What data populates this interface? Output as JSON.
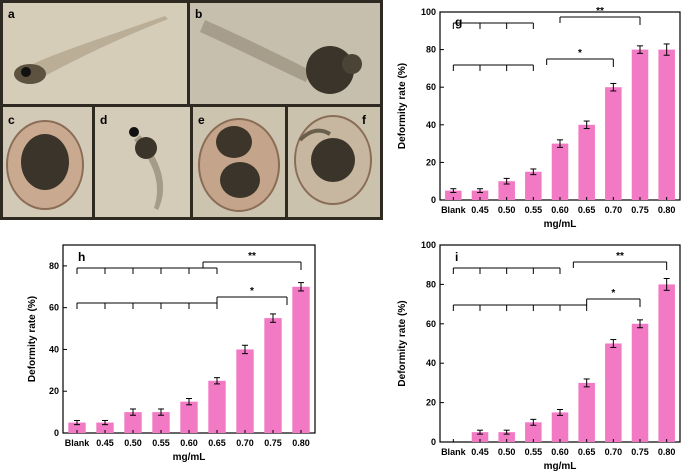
{
  "photos": {
    "labels": [
      "a",
      "b",
      "c",
      "d",
      "e",
      "f"
    ],
    "bg_color": "#cfc6b4",
    "frame_color": "#3a3327"
  },
  "bar_color": "#f27ac5",
  "chart_data": [
    {
      "panel": "g",
      "type": "bar",
      "categories": [
        "Blank",
        "0.45",
        "0.50",
        "0.55",
        "0.60",
        "0.65",
        "0.70",
        "0.75",
        "0.80"
      ],
      "values": [
        5,
        5,
        10,
        15,
        30,
        40,
        60,
        80,
        80
      ],
      "errors": [
        1,
        1,
        1.5,
        1.5,
        2,
        2,
        2,
        2,
        3
      ],
      "xlabel": "mg/mL",
      "ylabel": "Deformity rate (%)",
      "ylim": [
        0,
        100
      ],
      "yticks": [
        0,
        20,
        40,
        60,
        80,
        100
      ],
      "sig_double": "**",
      "sig_single": "*"
    },
    {
      "panel": "h",
      "type": "bar",
      "categories": [
        "Blank",
        "0.45",
        "0.50",
        "0.55",
        "0.60",
        "0.65",
        "0.70",
        "0.75",
        "0.80"
      ],
      "values": [
        5,
        5,
        10,
        10,
        15,
        25,
        40,
        55,
        70
      ],
      "errors": [
        1,
        1,
        1.5,
        1.5,
        1.5,
        1.5,
        2,
        2,
        2
      ],
      "xlabel": "mg/mL",
      "ylabel": "Deformity rate (%)",
      "ylim": [
        0,
        90
      ],
      "yticks": [
        0,
        20,
        40,
        60,
        80
      ],
      "sig_double": "**",
      "sig_single": "*"
    },
    {
      "panel": "i",
      "type": "bar",
      "categories": [
        "Blank",
        "0.45",
        "0.50",
        "0.55",
        "0.60",
        "0.65",
        "0.70",
        "0.75",
        "0.80"
      ],
      "values": [
        0,
        5,
        5,
        10,
        15,
        30,
        50,
        60,
        80
      ],
      "errors": [
        0,
        1,
        1,
        1.5,
        1.5,
        2,
        2,
        2,
        3
      ],
      "xlabel": "mg/mL",
      "ylabel": "Deformity rate (%)",
      "ylim": [
        0,
        100
      ],
      "yticks": [
        0,
        20,
        40,
        60,
        80,
        100
      ],
      "sig_double": "**",
      "sig_single": "*"
    }
  ]
}
